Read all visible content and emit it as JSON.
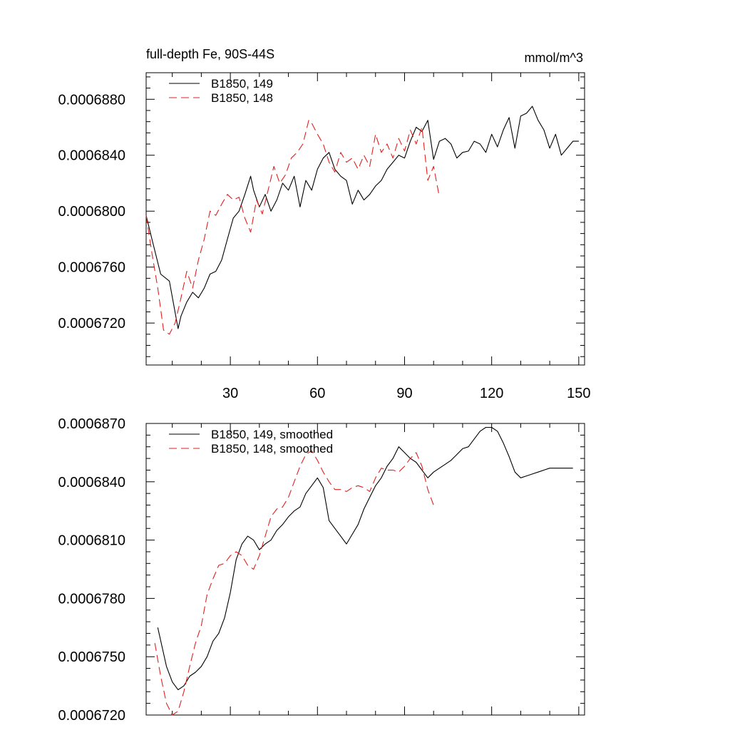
{
  "chart_data": [
    {
      "type": "line",
      "title": "full-depth Fe, 90S-44S",
      "units": "mmol/m^3",
      "xlim": [
        1,
        152
      ],
      "ylim": [
        0.000669,
        0.0006899
      ],
      "x_ticks": [
        30,
        60,
        90,
        120,
        150
      ],
      "x_tick_labels": [
        "30",
        "60",
        "90",
        "120",
        "150"
      ],
      "y_ticks": [
        0.000672,
        0.000676,
        0.00068,
        0.000684,
        0.000688
      ],
      "y_tick_labels": [
        "0.0006720",
        "0.0006760",
        "0.0006800",
        "0.0006840",
        "0.0006880"
      ],
      "legend_position": "top-left",
      "series": [
        {
          "name": "B1850, 149",
          "color": "#000000",
          "style": "solid",
          "x": [
            1,
            3,
            6,
            9,
            12,
            13,
            15,
            17,
            19,
            21,
            23,
            25,
            27,
            29,
            31,
            33,
            35,
            37,
            38,
            40,
            42,
            44,
            46,
            48,
            50,
            52,
            54,
            56,
            58,
            60,
            62,
            64,
            66,
            68,
            70,
            72,
            74,
            76,
            78,
            80,
            82,
            84,
            86,
            88,
            90,
            92,
            94,
            96,
            98,
            100,
            102,
            104,
            106,
            108,
            110,
            112,
            114,
            116,
            118,
            120,
            122,
            124,
            126,
            128,
            130,
            132,
            134,
            136,
            138,
            140,
            142,
            144,
            146,
            148,
            150
          ],
          "y": [
            0.0006797,
            0.000678,
            0.0006755,
            0.000675,
            0.0006716,
            0.0006725,
            0.0006735,
            0.0006742,
            0.0006738,
            0.0006745,
            0.0006755,
            0.0006757,
            0.0006765,
            0.000678,
            0.0006795,
            0.00068,
            0.0006812,
            0.0006825,
            0.0006815,
            0.0006803,
            0.0006812,
            0.00068,
            0.0006808,
            0.000682,
            0.0006815,
            0.0006825,
            0.0006803,
            0.0006822,
            0.0006815,
            0.000683,
            0.0006838,
            0.0006842,
            0.000683,
            0.0006825,
            0.0006822,
            0.0006805,
            0.0006815,
            0.0006808,
            0.0006812,
            0.0006818,
            0.0006822,
            0.000683,
            0.0006835,
            0.000684,
            0.0006838,
            0.000685,
            0.000686,
            0.0006857,
            0.0006865,
            0.0006837,
            0.000685,
            0.0006852,
            0.0006848,
            0.0006838,
            0.0006842,
            0.0006843,
            0.000685,
            0.0006848,
            0.0006842,
            0.0006855,
            0.0006846,
            0.0006858,
            0.0006867,
            0.0006845,
            0.0006868,
            0.000687,
            0.0006875,
            0.0006865,
            0.0006858,
            0.0006845,
            0.0006855,
            0.000684,
            0.0006845,
            0.000685,
            0.000685
          ]
        },
        {
          "name": "B1850, 148",
          "color": "#e0201e",
          "style": "dashed",
          "x": [
            1,
            3,
            5,
            7,
            9,
            11,
            13,
            15,
            17,
            19,
            21,
            23,
            25,
            27,
            29,
            31,
            33,
            35,
            37,
            39,
            41,
            43,
            45,
            47,
            49,
            51,
            53,
            55,
            57,
            58,
            60,
            62,
            64,
            66,
            68,
            70,
            72,
            74,
            76,
            78,
            80,
            82,
            84,
            86,
            88,
            90,
            92,
            94,
            96,
            98,
            100,
            102
          ],
          "y": [
            0.0006797,
            0.000677,
            0.0006745,
            0.0006715,
            0.0006712,
            0.000672,
            0.0006738,
            0.0006757,
            0.0006745,
            0.0006765,
            0.000678,
            0.00068,
            0.0006797,
            0.0006805,
            0.0006812,
            0.0006808,
            0.000681,
            0.0006795,
            0.0006785,
            0.0006808,
            0.0006798,
            0.0006815,
            0.0006832,
            0.000682,
            0.0006826,
            0.0006838,
            0.0006842,
            0.0006848,
            0.0006865,
            0.0006863,
            0.0006855,
            0.0006848,
            0.0006835,
            0.0006828,
            0.0006842,
            0.0006835,
            0.0006838,
            0.000683,
            0.000684,
            0.0006832,
            0.0006855,
            0.0006842,
            0.0006848,
            0.0006838,
            0.0006852,
            0.0006843,
            0.0006858,
            0.0006848,
            0.000686,
            0.0006822,
            0.0006832,
            0.000681
          ]
        }
      ]
    },
    {
      "type": "line",
      "xlim": [
        1,
        152
      ],
      "ylim": [
        0.000672,
        0.000687
      ],
      "x_ticks": [
        30,
        60,
        90,
        120,
        150
      ],
      "y_ticks": [
        0.000672,
        0.000675,
        0.000678,
        0.000681,
        0.000684,
        0.000687
      ],
      "y_tick_labels": [
        "0.0006720",
        "0.0006750",
        "0.0006780",
        "0.0006810",
        "0.0006840",
        "0.0006870"
      ],
      "legend_position": "top-left",
      "series": [
        {
          "name": "B1850, 149, smoothed",
          "color": "#000000",
          "style": "solid",
          "x": [
            5,
            8,
            10,
            12,
            14,
            16,
            18,
            20,
            22,
            24,
            26,
            28,
            30,
            32,
            34,
            36,
            38,
            40,
            42,
            44,
            46,
            48,
            50,
            52,
            54,
            56,
            58,
            60,
            62,
            64,
            66,
            68,
            70,
            72,
            74,
            76,
            78,
            80,
            82,
            84,
            86,
            88,
            90,
            92,
            94,
            96,
            98,
            100,
            102,
            104,
            106,
            108,
            110,
            112,
            114,
            116,
            118,
            120,
            122,
            124,
            126,
            128,
            130,
            132,
            134,
            136,
            138,
            140,
            142,
            144,
            146,
            148
          ],
          "y": [
            0.0006765,
            0.0006745,
            0.0006737,
            0.0006733,
            0.0006735,
            0.000674,
            0.0006742,
            0.0006745,
            0.000675,
            0.0006758,
            0.0006762,
            0.000677,
            0.0006783,
            0.00068,
            0.0006808,
            0.0006812,
            0.000681,
            0.0006805,
            0.0006808,
            0.000681,
            0.0006815,
            0.0006818,
            0.0006822,
            0.0006825,
            0.0006827,
            0.0006834,
            0.0006838,
            0.0006842,
            0.0006837,
            0.000682,
            0.0006816,
            0.0006812,
            0.0006808,
            0.0006813,
            0.0006818,
            0.0006826,
            0.0006832,
            0.0006838,
            0.0006842,
            0.0006848,
            0.0006852,
            0.0006858,
            0.0006855,
            0.0006852,
            0.000685,
            0.0006846,
            0.0006842,
            0.0006845,
            0.0006847,
            0.0006849,
            0.0006851,
            0.0006854,
            0.0006857,
            0.0006858,
            0.0006862,
            0.0006866,
            0.0006868,
            0.0006868,
            0.0006866,
            0.000686,
            0.0006853,
            0.0006845,
            0.0006842,
            0.0006843,
            0.0006844,
            0.0006845,
            0.0006846,
            0.0006847,
            0.0006847,
            0.0006847,
            0.0006847,
            0.0006847
          ],
          "x_note": ""
        },
        {
          "name": "B1850, 148, smoothed",
          "color": "#e0201e",
          "style": "dashed",
          "x": [
            4,
            6,
            8,
            10,
            12,
            14,
            16,
            18,
            20,
            22,
            24,
            26,
            28,
            30,
            32,
            34,
            36,
            38,
            40,
            42,
            44,
            46,
            48,
            50,
            52,
            54,
            56,
            58,
            60,
            62,
            64,
            66,
            68,
            70,
            72,
            74,
            76,
            78,
            80,
            82,
            84,
            86,
            88,
            90,
            92,
            94,
            96,
            98,
            100
          ],
          "y": [
            0.0006757,
            0.000674,
            0.0006726,
            0.000672,
            0.0006722,
            0.0006732,
            0.0006745,
            0.0006757,
            0.0006766,
            0.0006782,
            0.000679,
            0.0006797,
            0.0006798,
            0.0006802,
            0.0006804,
            0.0006802,
            0.0006797,
            0.0006795,
            0.0006802,
            0.0006812,
            0.0006822,
            0.0006826,
            0.0006827,
            0.0006832,
            0.000684,
            0.0006848,
            0.0006854,
            0.0006856,
            0.0006851,
            0.0006845,
            0.000684,
            0.0006836,
            0.0006836,
            0.0006835,
            0.0006837,
            0.0006838,
            0.0006837,
            0.0006835,
            0.0006842,
            0.0006847,
            0.0006846,
            0.0006846,
            0.0006845,
            0.0006848,
            0.0006852,
            0.0006855,
            0.0006848,
            0.0006836,
            0.0006828
          ]
        }
      ]
    }
  ]
}
